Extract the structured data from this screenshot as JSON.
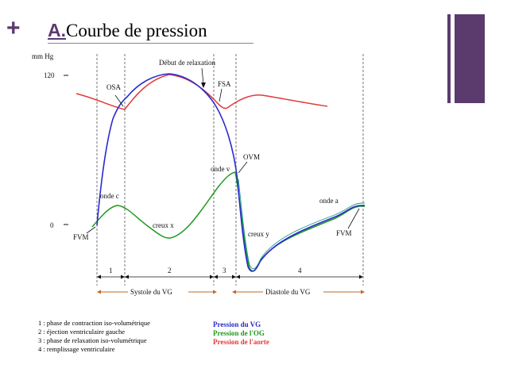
{
  "slide": {
    "title_letter": "A.",
    "title_text": "Courbe de pression",
    "plus_icon": "plus-icon"
  },
  "axis": {
    "unit": "mm Hg",
    "tick_120": "120",
    "tick_0": "0"
  },
  "annotations": {
    "osa": "OSA",
    "debut_relaxation": "Début de relaxation",
    "fsa": "FSA",
    "onde_v": "onde v",
    "ovm": "OVM",
    "onde_c": "onde c",
    "creux_x": "creux x",
    "creux_y": "creux y",
    "onde_a": "onde a",
    "fvm_left": "FVM",
    "fvm_right": "FVM"
  },
  "phases": {
    "p1": "1",
    "p2": "2",
    "p3": "3",
    "p4": "4",
    "systole": "Systole du VG",
    "diastole": "Diastole du VG"
  },
  "legend": {
    "items": [
      "1 : phase de contraction iso-volumétrique",
      "2 : éjection ventriculaire gauche",
      "3 : phase de relaxation iso-volumétrique",
      "4 : remplissage ventriculaire"
    ],
    "series": [
      {
        "name": "Pression du VG",
        "color": "#2a2ad0"
      },
      {
        "name": "Pression de l'OG",
        "color": "#1f9a1f"
      },
      {
        "name": "Pression de l'aorte",
        "color": "#e03a3a"
      }
    ]
  },
  "colors": {
    "accent": "#5b3a6e",
    "lv": "#2a2ad0",
    "la": "#1f9a1f",
    "aorta": "#e03a3a",
    "phase_bracket": "#c0692a"
  }
}
